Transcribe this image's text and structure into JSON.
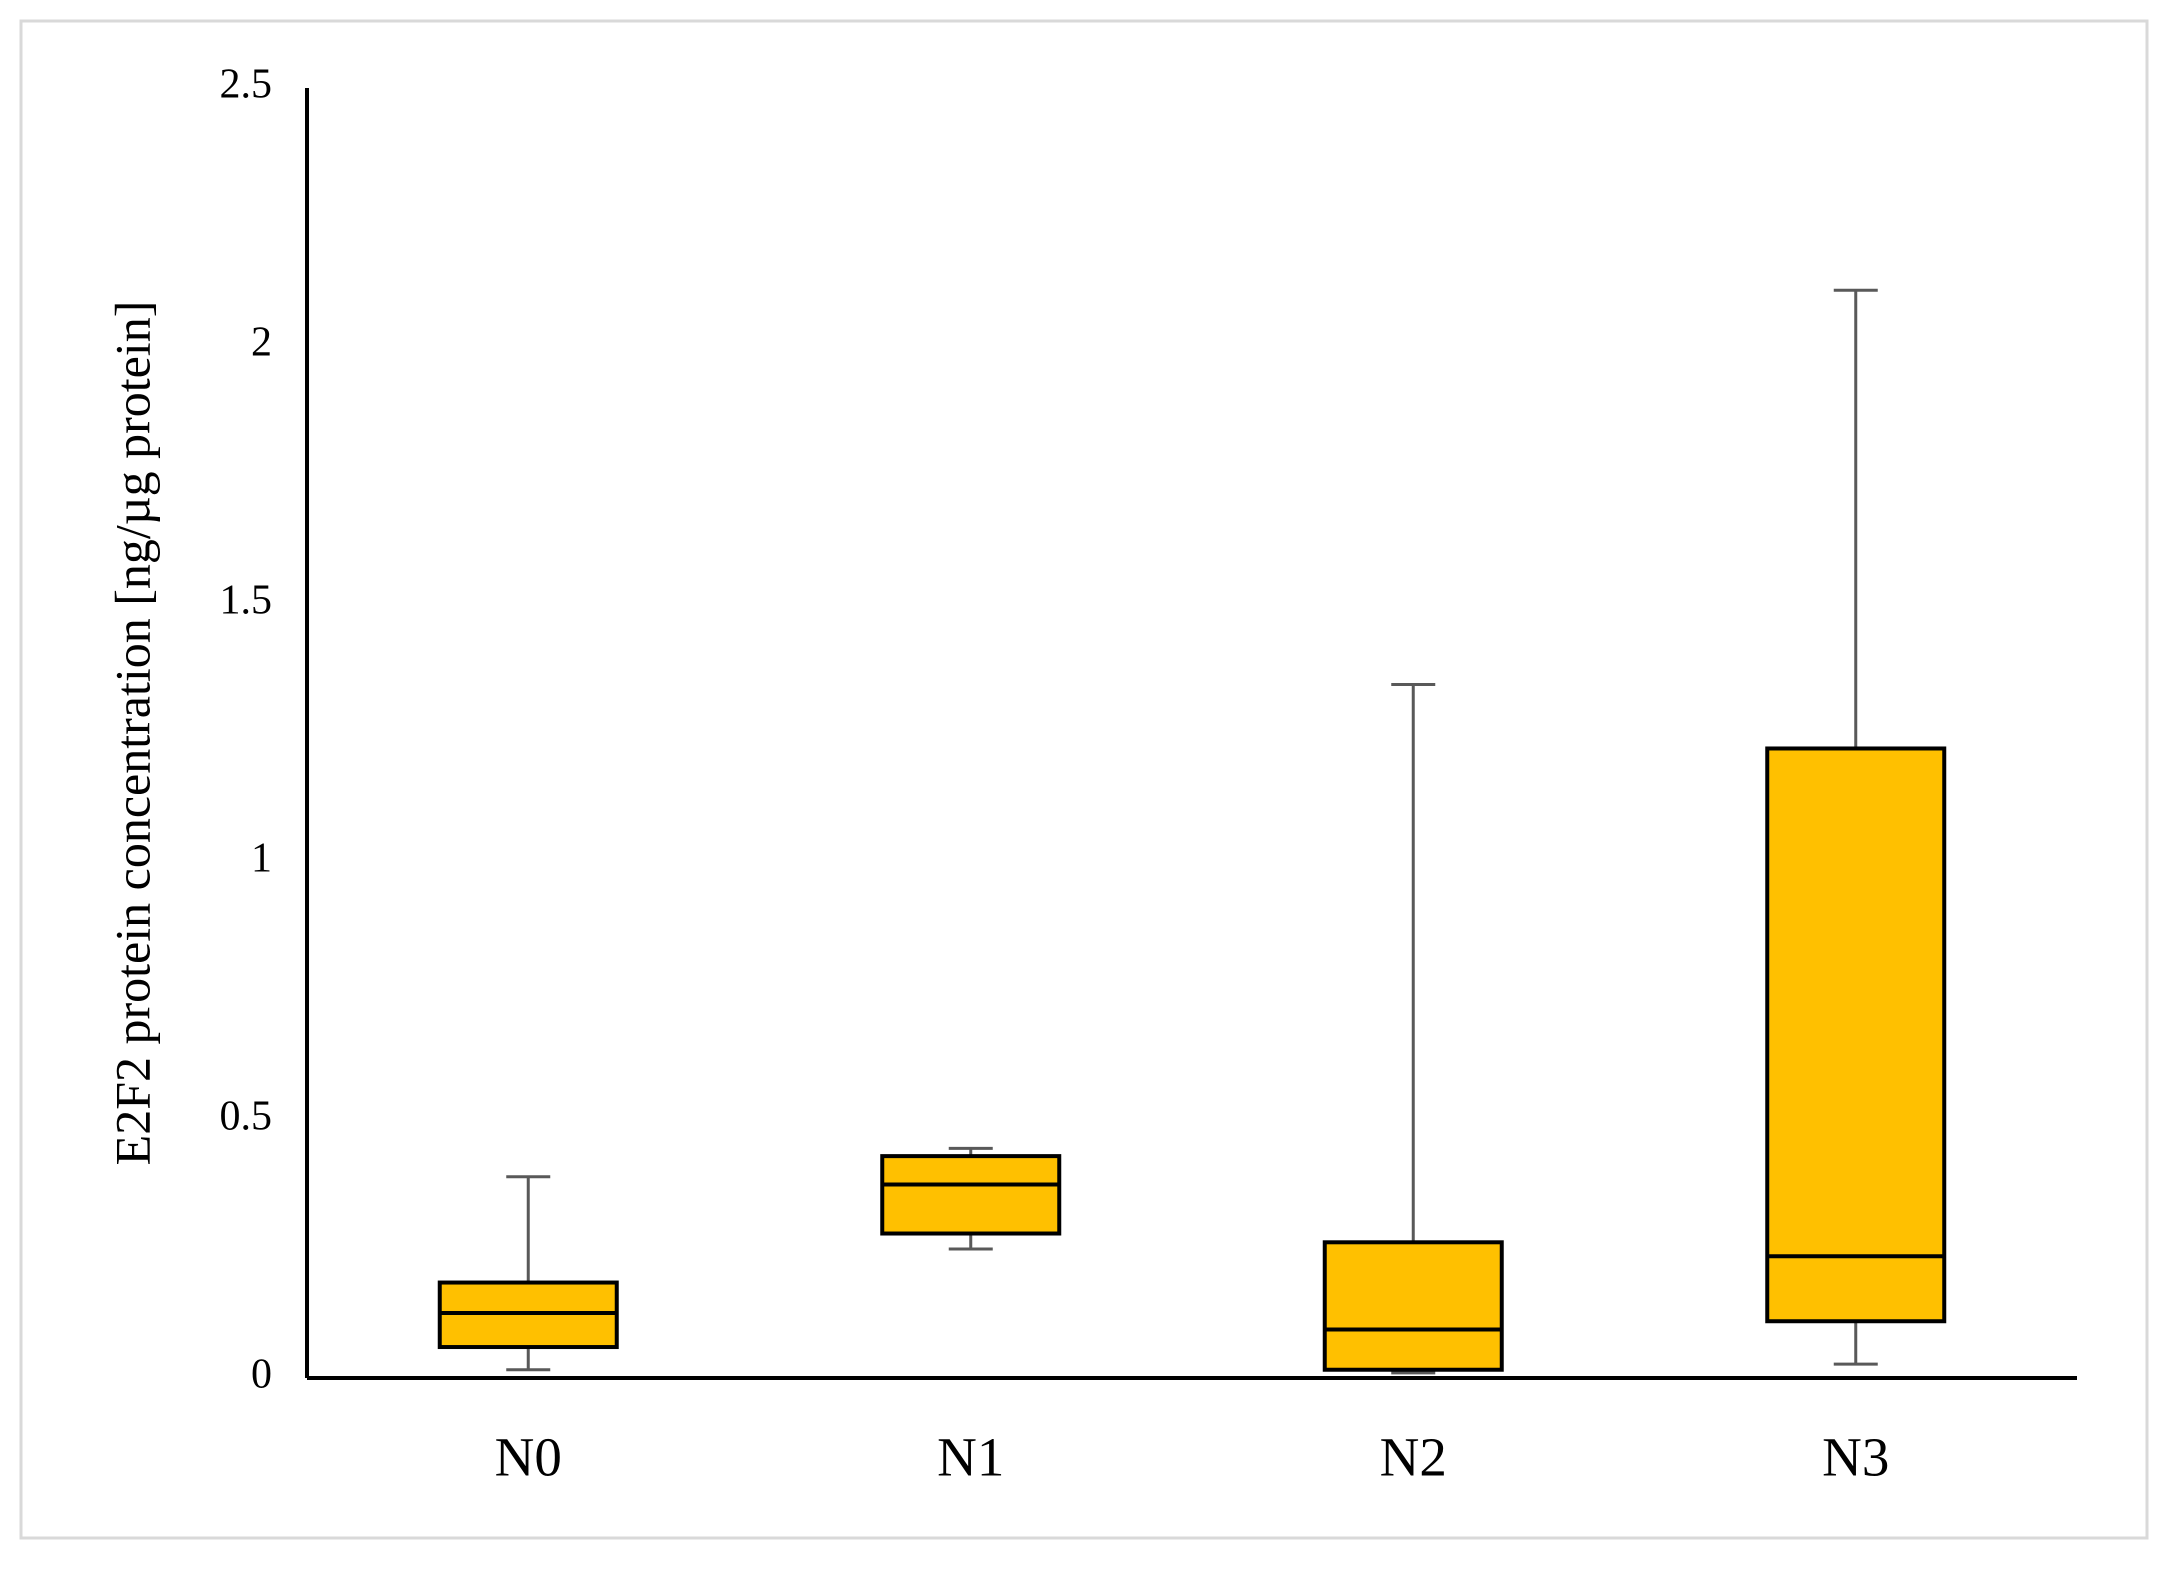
{
  "chart_data": {
    "type": "box",
    "y_label": "E2F2 protein concentration  [ng/µg protein]",
    "categories": [
      "N0",
      "N1",
      "N2",
      "N3"
    ],
    "series": [
      {
        "color": "#ffc000",
        "values": [
          {
            "min": 0.016,
            "q1": 0.06,
            "median": 0.126,
            "q3": 0.185,
            "max": 0.39
          },
          {
            "min": 0.25,
            "q1": 0.28,
            "median": 0.375,
            "q3": 0.43,
            "max": 0.445
          },
          {
            "min": 0.01,
            "q1": 0.016,
            "median": 0.094,
            "q3": 0.263,
            "max": 1.344
          },
          {
            "min": 0.027,
            "q1": 0.11,
            "median": 0.236,
            "q3": 1.22,
            "max": 2.108
          }
        ]
      }
    ],
    "ylim": [
      0,
      2.5
    ],
    "yticks": [
      0,
      0.5,
      1,
      1.5,
      2,
      2.5
    ],
    "grid": false
  }
}
